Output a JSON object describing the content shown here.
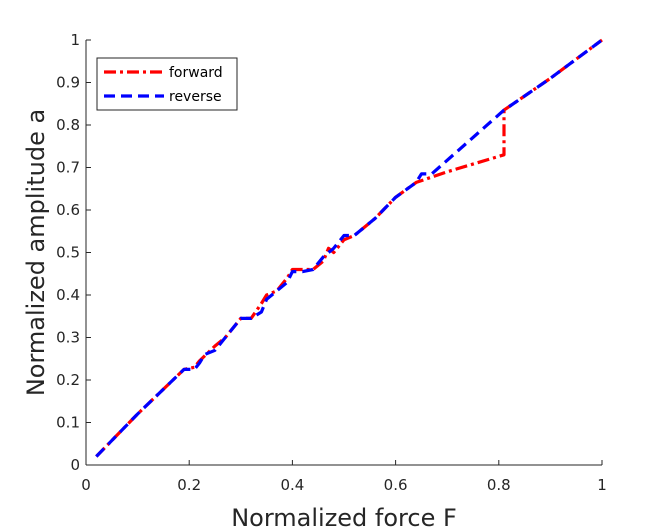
{
  "chart_data": {
    "type": "line",
    "title": "",
    "xlabel": "Normalized force F",
    "ylabel": "Normalized amplitude a",
    "xlim": [
      0,
      1
    ],
    "ylim": [
      0,
      1
    ],
    "xticks": [
      "0",
      "0.2",
      "0.4",
      "0.6",
      "0.8",
      "1"
    ],
    "yticks": [
      "0",
      "0.1",
      "0.2",
      "0.3",
      "0.4",
      "0.5",
      "0.6",
      "0.7",
      "0.8",
      "0.9",
      "1"
    ],
    "grid": false,
    "legend_position": "top-left",
    "series": [
      {
        "name": "forward",
        "color": "#ff0000",
        "style": "dash-dot",
        "x": [
          0.02,
          0.1,
          0.19,
          0.21,
          0.22,
          0.25,
          0.27,
          0.3,
          0.32,
          0.34,
          0.35,
          0.37,
          0.39,
          0.4,
          0.42,
          0.44,
          0.46,
          0.47,
          0.48,
          0.5,
          0.52,
          0.56,
          0.6,
          0.64,
          0.7,
          0.81,
          0.81,
          0.9,
          1.0
        ],
        "y": [
          0.02,
          0.12,
          0.225,
          0.23,
          0.245,
          0.28,
          0.3,
          0.345,
          0.345,
          0.38,
          0.4,
          0.41,
          0.44,
          0.46,
          0.46,
          0.46,
          0.48,
          0.51,
          0.5,
          0.53,
          0.54,
          0.58,
          0.63,
          0.665,
          0.69,
          0.73,
          0.835,
          0.91,
          1.0
        ]
      },
      {
        "name": "reverse",
        "color": "#0000ff",
        "style": "dashed",
        "x": [
          0.02,
          0.1,
          0.19,
          0.21,
          0.22,
          0.23,
          0.25,
          0.27,
          0.3,
          0.32,
          0.34,
          0.35,
          0.37,
          0.39,
          0.4,
          0.42,
          0.44,
          0.46,
          0.48,
          0.5,
          0.52,
          0.56,
          0.6,
          0.64,
          0.65,
          0.67,
          0.81,
          0.9,
          1.0
        ],
        "y": [
          0.02,
          0.12,
          0.225,
          0.225,
          0.24,
          0.26,
          0.27,
          0.3,
          0.345,
          0.345,
          0.36,
          0.39,
          0.41,
          0.43,
          0.455,
          0.455,
          0.46,
          0.49,
          0.51,
          0.54,
          0.54,
          0.58,
          0.63,
          0.665,
          0.685,
          0.685,
          0.835,
          0.91,
          1.0
        ]
      }
    ]
  }
}
